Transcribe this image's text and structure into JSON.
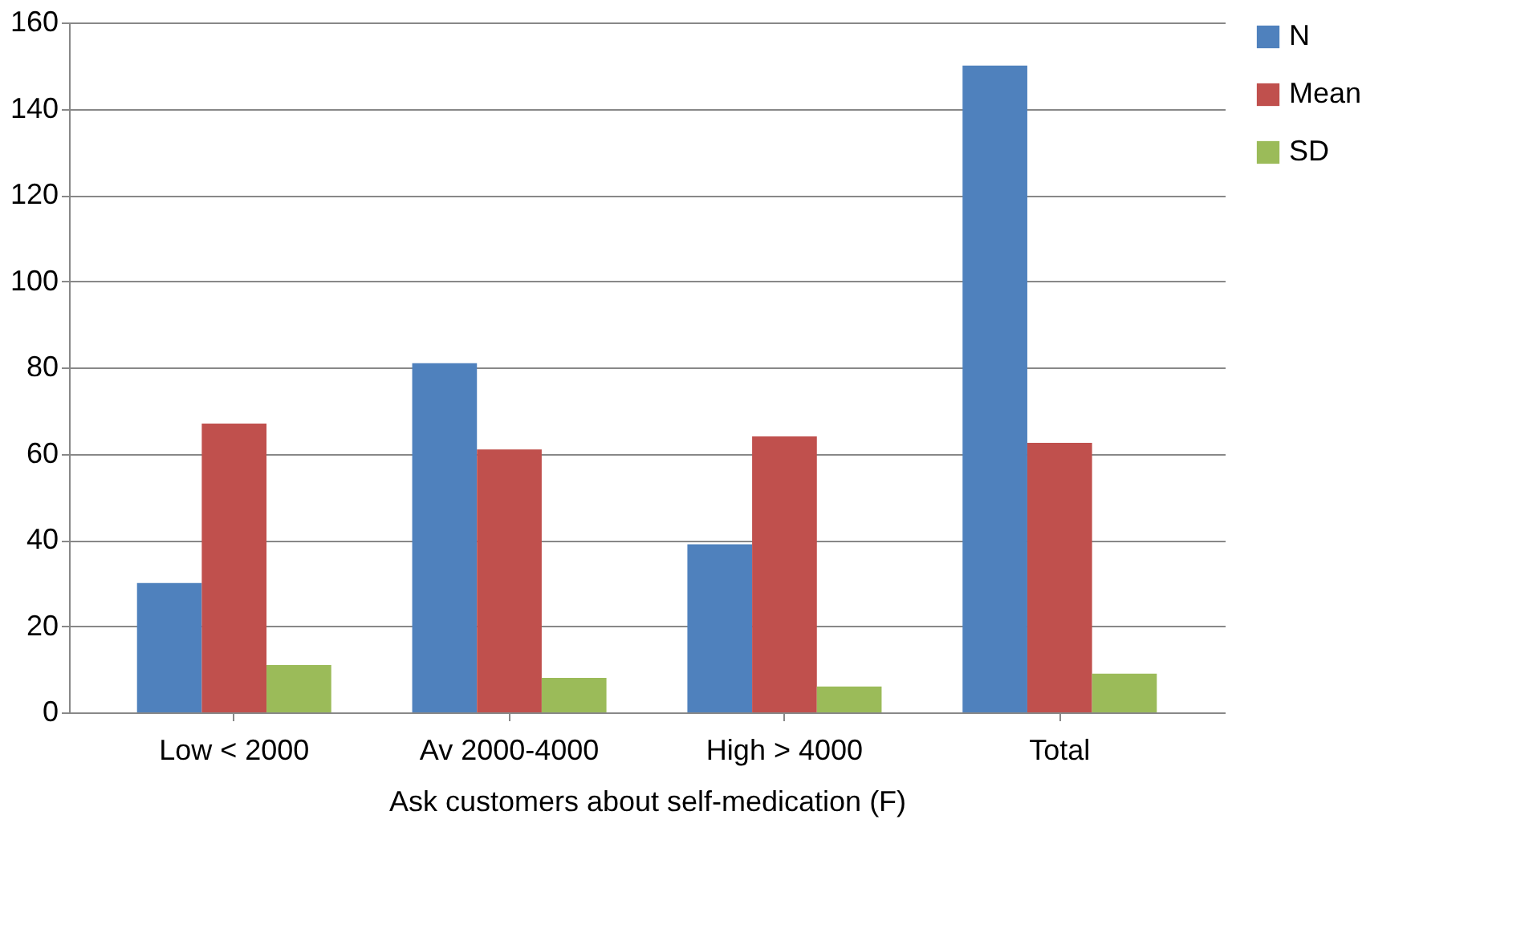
{
  "chart_data": {
    "type": "bar",
    "xlabel": "Ask customers about self-medication (F)",
    "categories": [
      "Low < 2000",
      "Av 2000-4000",
      "High > 4000",
      "Total"
    ],
    "series": [
      {
        "name": "N",
        "color": "#4f81bd",
        "values": [
          30,
          81,
          39,
          150
        ]
      },
      {
        "name": "Mean",
        "color": "#c0504d",
        "values": [
          67,
          61,
          64,
          62.5
        ]
      },
      {
        "name": "SD",
        "color": "#9bbb59",
        "values": [
          11,
          8,
          6,
          9
        ]
      }
    ],
    "ylim": [
      0,
      160
    ],
    "yticks": [
      0,
      20,
      40,
      60,
      80,
      100,
      120,
      140,
      160
    ],
    "grid": "y",
    "legend": "right"
  }
}
